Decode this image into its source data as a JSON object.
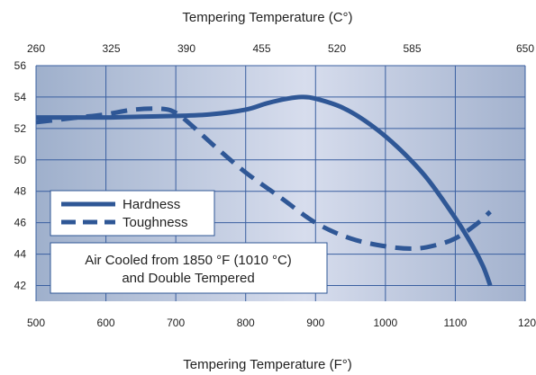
{
  "chart_data": {
    "type": "line",
    "title": "",
    "top_axis": {
      "label": "Tempering Temperature (C°)",
      "ticks": [
        "260",
        "325",
        "390",
        "455",
        "520",
        "585",
        "650"
      ]
    },
    "bottom_axis": {
      "label": "Tempering Temperature (F°)",
      "ticks": [
        "500",
        "600",
        "700",
        "800",
        "900",
        "1000",
        "1100",
        "120"
      ],
      "range": [
        500,
        1200
      ]
    },
    "left_axis": {
      "ticks": [
        "42",
        "44",
        "46",
        "48",
        "50",
        "52",
        "54",
        "56"
      ],
      "range": [
        41,
        56
      ]
    },
    "grid": true,
    "legend": {
      "placement": "lower-left",
      "entries": [
        {
          "label": "Hardness",
          "style": "solid"
        },
        {
          "label": "Toughness",
          "style": "dashed"
        }
      ]
    },
    "annotation": {
      "line1": "Air Cooled from 1850 °F (1010 °C)",
      "line2": "and Double Tempered"
    },
    "series": [
      {
        "name": "Hardness",
        "style": "solid",
        "x": [
          500,
          550,
          600,
          650,
          700,
          750,
          800,
          830,
          860,
          880,
          900,
          940,
          980,
          1020,
          1060,
          1100,
          1125,
          1140,
          1150
        ],
        "y": [
          52.7,
          52.7,
          52.7,
          52.75,
          52.8,
          52.9,
          53.2,
          53.6,
          53.9,
          54.0,
          53.9,
          53.3,
          52.2,
          50.7,
          48.8,
          46.3,
          44.5,
          43.2,
          42.0
        ]
      },
      {
        "name": "Toughness",
        "style": "dashed",
        "x": [
          500,
          560,
          600,
          640,
          680,
          700,
          720,
          760,
          800,
          850,
          900,
          950,
          1000,
          1040,
          1070,
          1100,
          1130,
          1150
        ],
        "y": [
          52.4,
          52.7,
          52.9,
          53.2,
          53.25,
          53.0,
          52.3,
          50.7,
          49.2,
          47.6,
          46.0,
          45.0,
          44.5,
          44.35,
          44.55,
          45.0,
          45.9,
          46.7
        ]
      }
    ],
    "colors": {
      "line": "#2f5796",
      "plot_bg_left": "#9fb0cc",
      "plot_bg_mid": "#d7dded",
      "plot_bg_right": "#a3b2ce",
      "grid": "#3a5fa0"
    }
  }
}
